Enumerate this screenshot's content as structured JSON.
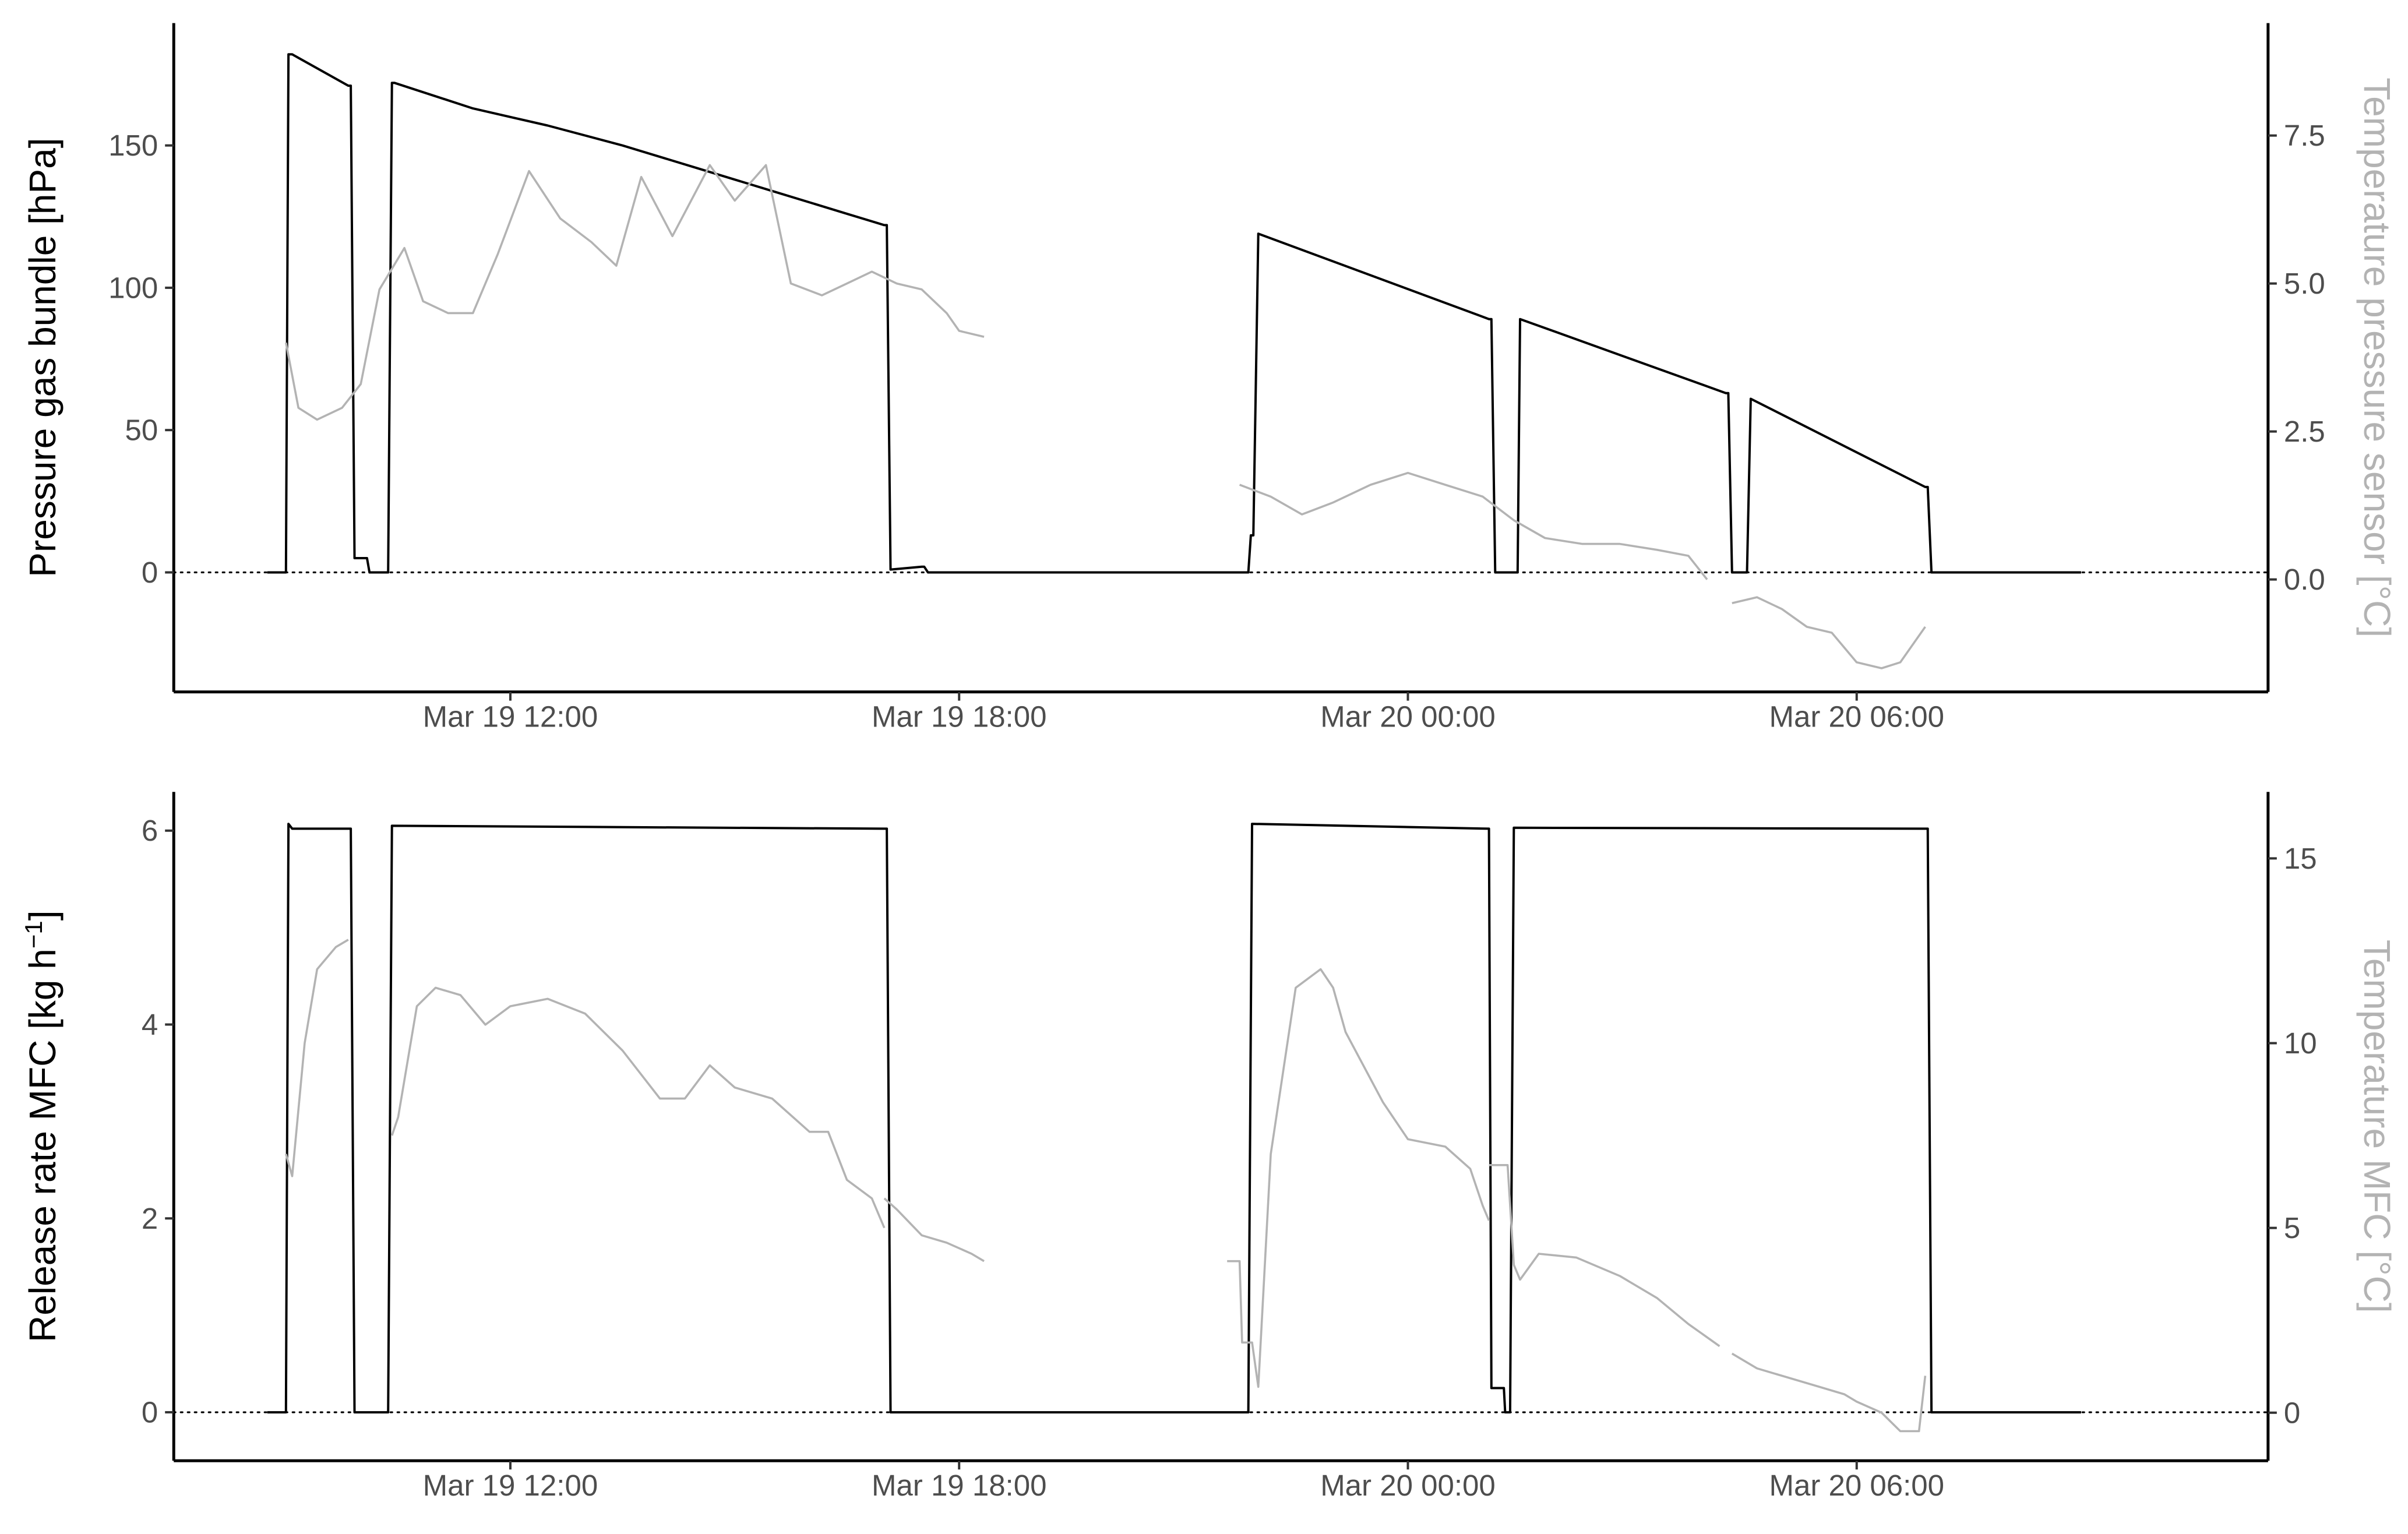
{
  "chart_data": [
    {
      "type": "line",
      "title": "",
      "x_axis": {
        "type": "datetime",
        "range": [
          "2023-03-19 07:30",
          "2023-03-20 11:30"
        ],
        "ticks": [
          "2023-03-19 12:00",
          "2023-03-19 18:00",
          "2023-03-20 00:00",
          "2023-03-20 06:00"
        ],
        "tick_labels": [
          "Mar 19 12:00",
          "Mar 19 18:00",
          "Mar 20 00:00",
          "Mar 20 06:00"
        ]
      },
      "y_left": {
        "label": "Pressure gas bundle [hPa]",
        "range": [
          -42,
          193
        ],
        "ticks": [
          0,
          50,
          100,
          150
        ],
        "tick_labels": [
          "0",
          "50",
          "100",
          "150"
        ]
      },
      "y_right": {
        "label": "Temperature pressure sensor [°C]",
        "range": [
          -1.9,
          9.4
        ],
        "ticks": [
          0,
          2.5,
          5,
          7.5
        ],
        "tick_labels": [
          "0.0",
          "2.5",
          "5.0",
          "7.5"
        ],
        "color": "#b3b3b3"
      },
      "reference_line": {
        "y": 0,
        "style": "dotted"
      },
      "grid": false,
      "series": [
        {
          "axis": "left",
          "color": "#000000",
          "x": [
            "2023-03-19 08:45",
            "2023-03-19 09:00",
            "2023-03-19 09:02",
            "2023-03-19 09:05",
            "2023-03-19 09:50",
            "2023-03-19 09:52",
            "2023-03-19 09:55",
            "2023-03-19 10:05",
            "2023-03-19 10:07",
            "2023-03-19 10:10",
            "2023-03-19 10:22",
            "2023-03-19 10:25",
            "2023-03-19 10:27",
            "2023-03-19 11:30",
            "2023-03-19 12:30",
            "2023-03-19 13:30",
            "2023-03-19 14:30",
            "2023-03-19 15:30",
            "2023-03-19 16:30",
            "2023-03-19 17:00",
            "2023-03-19 17:02",
            "2023-03-19 17:05",
            "2023-03-19 17:30",
            "2023-03-19 17:32",
            "2023-03-19 17:35",
            "2023-03-19 17:50",
            "2023-03-19 21:45",
            "2023-03-19 21:52",
            "2023-03-19 21:54",
            "2023-03-19 21:56",
            "2023-03-19 22:00",
            "2023-03-20 01:05",
            "2023-03-20 01:07",
            "2023-03-20 01:10",
            "2023-03-20 01:26",
            "2023-03-20 01:28",
            "2023-03-20 01:30",
            "2023-03-20 04:15",
            "2023-03-20 04:17",
            "2023-03-20 04:20",
            "2023-03-20 04:30",
            "2023-03-20 04:32",
            "2023-03-20 04:35",
            "2023-03-20 06:55",
            "2023-03-20 06:57",
            "2023-03-20 07:00",
            "2023-03-20 09:00"
          ],
          "y": [
            0,
            0,
            182,
            182,
            171,
            171,
            5,
            5,
            0,
            0,
            0,
            172,
            172,
            163,
            157,
            150,
            142,
            134,
            126,
            122,
            122,
            1,
            2,
            2,
            0,
            0,
            0,
            0,
            13,
            13,
            119,
            89,
            89,
            0,
            0,
            0,
            89,
            63,
            63,
            0,
            0,
            0,
            61,
            30,
            30,
            0,
            0
          ]
        },
        {
          "axis": "right",
          "color": "#b3b3b3",
          "segments": [
            {
              "x": [
                "2023-03-19 09:00",
                "2023-03-19 09:10",
                "2023-03-19 09:25",
                "2023-03-19 09:45",
                "2023-03-19 10:00",
                "2023-03-19 10:15",
                "2023-03-19 10:35",
                "2023-03-19 10:50",
                "2023-03-19 11:10",
                "2023-03-19 11:30",
                "2023-03-19 11:50",
                "2023-03-19 12:15",
                "2023-03-19 12:40",
                "2023-03-19 13:05",
                "2023-03-19 13:25",
                "2023-03-19 13:45",
                "2023-03-19 14:10",
                "2023-03-19 14:40",
                "2023-03-19 15:00",
                "2023-03-19 15:25",
                "2023-03-19 15:45",
                "2023-03-19 16:10",
                "2023-03-19 16:30",
                "2023-03-19 16:50",
                "2023-03-19 17:10",
                "2023-03-19 17:30",
                "2023-03-19 17:50",
                "2023-03-19 18:00",
                "2023-03-19 18:20"
              ],
              "y": [
                4.0,
                2.9,
                2.7,
                2.9,
                3.3,
                4.9,
                5.6,
                4.7,
                4.5,
                4.5,
                5.5,
                6.9,
                6.1,
                5.7,
                5.3,
                6.8,
                5.8,
                7.0,
                6.4,
                7.0,
                5.0,
                4.8,
                5.0,
                5.2,
                5.0,
                4.9,
                4.5,
                4.2,
                4.1
              ]
            },
            {
              "x": [
                "2023-03-19 21:45",
                "2023-03-19 22:10",
                "2023-03-19 22:35",
                "2023-03-19 23:00",
                "2023-03-19 23:30",
                "2023-03-20 00:00",
                "2023-03-20 00:30",
                "2023-03-20 01:00",
                "2023-03-20 01:25",
                "2023-03-20 01:50",
                "2023-03-20 02:20",
                "2023-03-20 02:50",
                "2023-03-20 03:20",
                "2023-03-20 03:45",
                "2023-03-20 04:00"
              ],
              "y": [
                1.6,
                1.4,
                1.1,
                1.3,
                1.6,
                1.8,
                1.6,
                1.4,
                1.0,
                0.7,
                0.6,
                0.6,
                0.5,
                0.4,
                0.0
              ]
            },
            {
              "x": [
                "2023-03-20 04:20",
                "2023-03-20 04:40",
                "2023-03-20 05:00",
                "2023-03-20 05:20",
                "2023-03-20 05:40",
                "2023-03-20 06:00",
                "2023-03-20 06:20",
                "2023-03-20 06:35",
                "2023-03-20 06:55"
              ],
              "y": [
                -0.4,
                -0.3,
                -0.5,
                -0.8,
                -0.9,
                -1.4,
                -1.5,
                -1.4,
                -0.8
              ]
            }
          ]
        }
      ]
    },
    {
      "type": "line",
      "title": "",
      "x_axis": {
        "type": "datetime",
        "range": [
          "2023-03-19 07:30",
          "2023-03-20 11:30"
        ],
        "ticks": [
          "2023-03-19 12:00",
          "2023-03-19 18:00",
          "2023-03-20 00:00",
          "2023-03-20 06:00"
        ],
        "tick_labels": [
          "Mar 19 12:00",
          "Mar 19 18:00",
          "Mar 20 00:00",
          "Mar 20 06:00"
        ]
      },
      "y_left": {
        "label": "Release rate MFC [kg h",
        "label_superscript": "−1",
        "label_suffix": "]",
        "range": [
          -0.5,
          6.4
        ],
        "ticks": [
          0,
          2,
          4,
          6
        ],
        "tick_labels": [
          "0",
          "2",
          "4",
          "6"
        ]
      },
      "y_right": {
        "label": "Temperature MFC [°C]",
        "range": [
          -1.3,
          16.8
        ],
        "ticks": [
          0,
          5,
          10,
          15
        ],
        "tick_labels": [
          "0",
          "5",
          "10",
          "15"
        ],
        "color": "#b3b3b3"
      },
      "reference_line": {
        "y": 0,
        "style": "dotted"
      },
      "grid": false,
      "series": [
        {
          "axis": "left",
          "color": "#000000",
          "x": [
            "2023-03-19 08:45",
            "2023-03-19 09:00",
            "2023-03-19 09:02",
            "2023-03-19 09:05",
            "2023-03-19 09:50",
            "2023-03-19 09:52",
            "2023-03-19 09:55",
            "2023-03-19 10:20",
            "2023-03-19 10:22",
            "2023-03-19 10:25",
            "2023-03-19 17:00",
            "2023-03-19 17:02",
            "2023-03-19 17:05",
            "2023-03-19 21:50",
            "2023-03-19 21:52",
            "2023-03-19 21:55",
            "2023-03-20 01:05",
            "2023-03-20 01:07",
            "2023-03-20 01:17",
            "2023-03-20 01:18",
            "2023-03-20 01:20",
            "2023-03-20 01:22",
            "2023-03-20 01:25",
            "2023-03-20 06:55",
            "2023-03-20 06:57",
            "2023-03-20 07:00",
            "2023-03-20 09:00"
          ],
          "y": [
            0,
            0,
            6.07,
            6.02,
            6.02,
            6.02,
            0,
            0,
            0,
            6.05,
            6.02,
            6.02,
            0,
            0,
            0,
            6.07,
            6.02,
            0.25,
            0.25,
            0,
            0,
            0,
            6.03,
            6.02,
            6.02,
            0,
            0
          ]
        },
        {
          "axis": "right",
          "color": "#b3b3b3",
          "segments": [
            {
              "x": [
                "2023-03-19 09:00",
                "2023-03-19 09:05",
                "2023-03-19 09:15",
                "2023-03-19 09:25",
                "2023-03-19 09:40",
                "2023-03-19 09:50"
              ],
              "y": [
                7.0,
                6.4,
                10.0,
                12.0,
                12.6,
                12.8
              ]
            },
            {
              "x": [
                "2023-03-19 10:25",
                "2023-03-19 10:30",
                "2023-03-19 10:45",
                "2023-03-19 11:00",
                "2023-03-19 11:20",
                "2023-03-19 11:40",
                "2023-03-19 12:00",
                "2023-03-19 12:30",
                "2023-03-19 13:00",
                "2023-03-19 13:30",
                "2023-03-19 14:00",
                "2023-03-19 14:20",
                "2023-03-19 14:40",
                "2023-03-19 15:00",
                "2023-03-19 15:30",
                "2023-03-19 16:00",
                "2023-03-19 16:15",
                "2023-03-19 16:30",
                "2023-03-19 16:50",
                "2023-03-19 17:00"
              ],
              "y": [
                7.5,
                8.0,
                11.0,
                11.5,
                11.3,
                10.5,
                11.0,
                11.2,
                10.8,
                9.8,
                8.5,
                8.5,
                9.4,
                8.8,
                8.5,
                7.6,
                7.6,
                6.3,
                5.8,
                5.0
              ]
            },
            {
              "x": [
                "2023-03-19 17:00",
                "2023-03-19 17:10",
                "2023-03-19 17:30",
                "2023-03-19 17:50",
                "2023-03-19 18:10",
                "2023-03-19 18:20"
              ],
              "y": [
                5.8,
                5.5,
                4.8,
                4.6,
                4.3,
                4.1
              ]
            },
            {
              "x": [
                "2023-03-19 21:35",
                "2023-03-19 21:45",
                "2023-03-19 21:47",
                "2023-03-19 21:55",
                "2023-03-19 22:00",
                "2023-03-19 22:10",
                "2023-03-19 22:30",
                "2023-03-19 22:50",
                "2023-03-19 23:00",
                "2023-03-19 23:10",
                "2023-03-19 23:40",
                "2023-03-20 00:00",
                "2023-03-20 00:30",
                "2023-03-20 00:50",
                "2023-03-20 01:00",
                "2023-03-20 01:05"
              ],
              "y": [
                4.1,
                4.1,
                1.9,
                1.9,
                0.7,
                7.0,
                11.5,
                12.0,
                11.5,
                10.3,
                8.4,
                7.4,
                7.2,
                6.6,
                5.6,
                5.2
              ]
            },
            {
              "x": [
                "2023-03-20 01:05",
                "2023-03-20 01:10",
                "2023-03-20 01:20",
                "2023-03-20 01:25",
                "2023-03-20 01:30",
                "2023-03-20 01:45",
                "2023-03-20 02:15",
                "2023-03-20 02:50",
                "2023-03-20 03:20",
                "2023-03-20 03:45",
                "2023-03-20 04:10"
              ],
              "y": [
                6.7,
                6.7,
                6.7,
                4.0,
                3.6,
                4.3,
                4.2,
                3.7,
                3.1,
                2.4,
                1.8
              ]
            },
            {
              "x": [
                "2023-03-20 04:20",
                "2023-03-20 04:40",
                "2023-03-20 05:00",
                "2023-03-20 05:30",
                "2023-03-20 05:50",
                "2023-03-20 06:00",
                "2023-03-20 06:20",
                "2023-03-20 06:35",
                "2023-03-20 06:50",
                "2023-03-20 06:55"
              ],
              "y": [
                1.6,
                1.2,
                1.0,
                0.7,
                0.5,
                0.3,
                0.0,
                -0.5,
                -0.5,
                1.0
              ]
            }
          ]
        }
      ]
    }
  ]
}
